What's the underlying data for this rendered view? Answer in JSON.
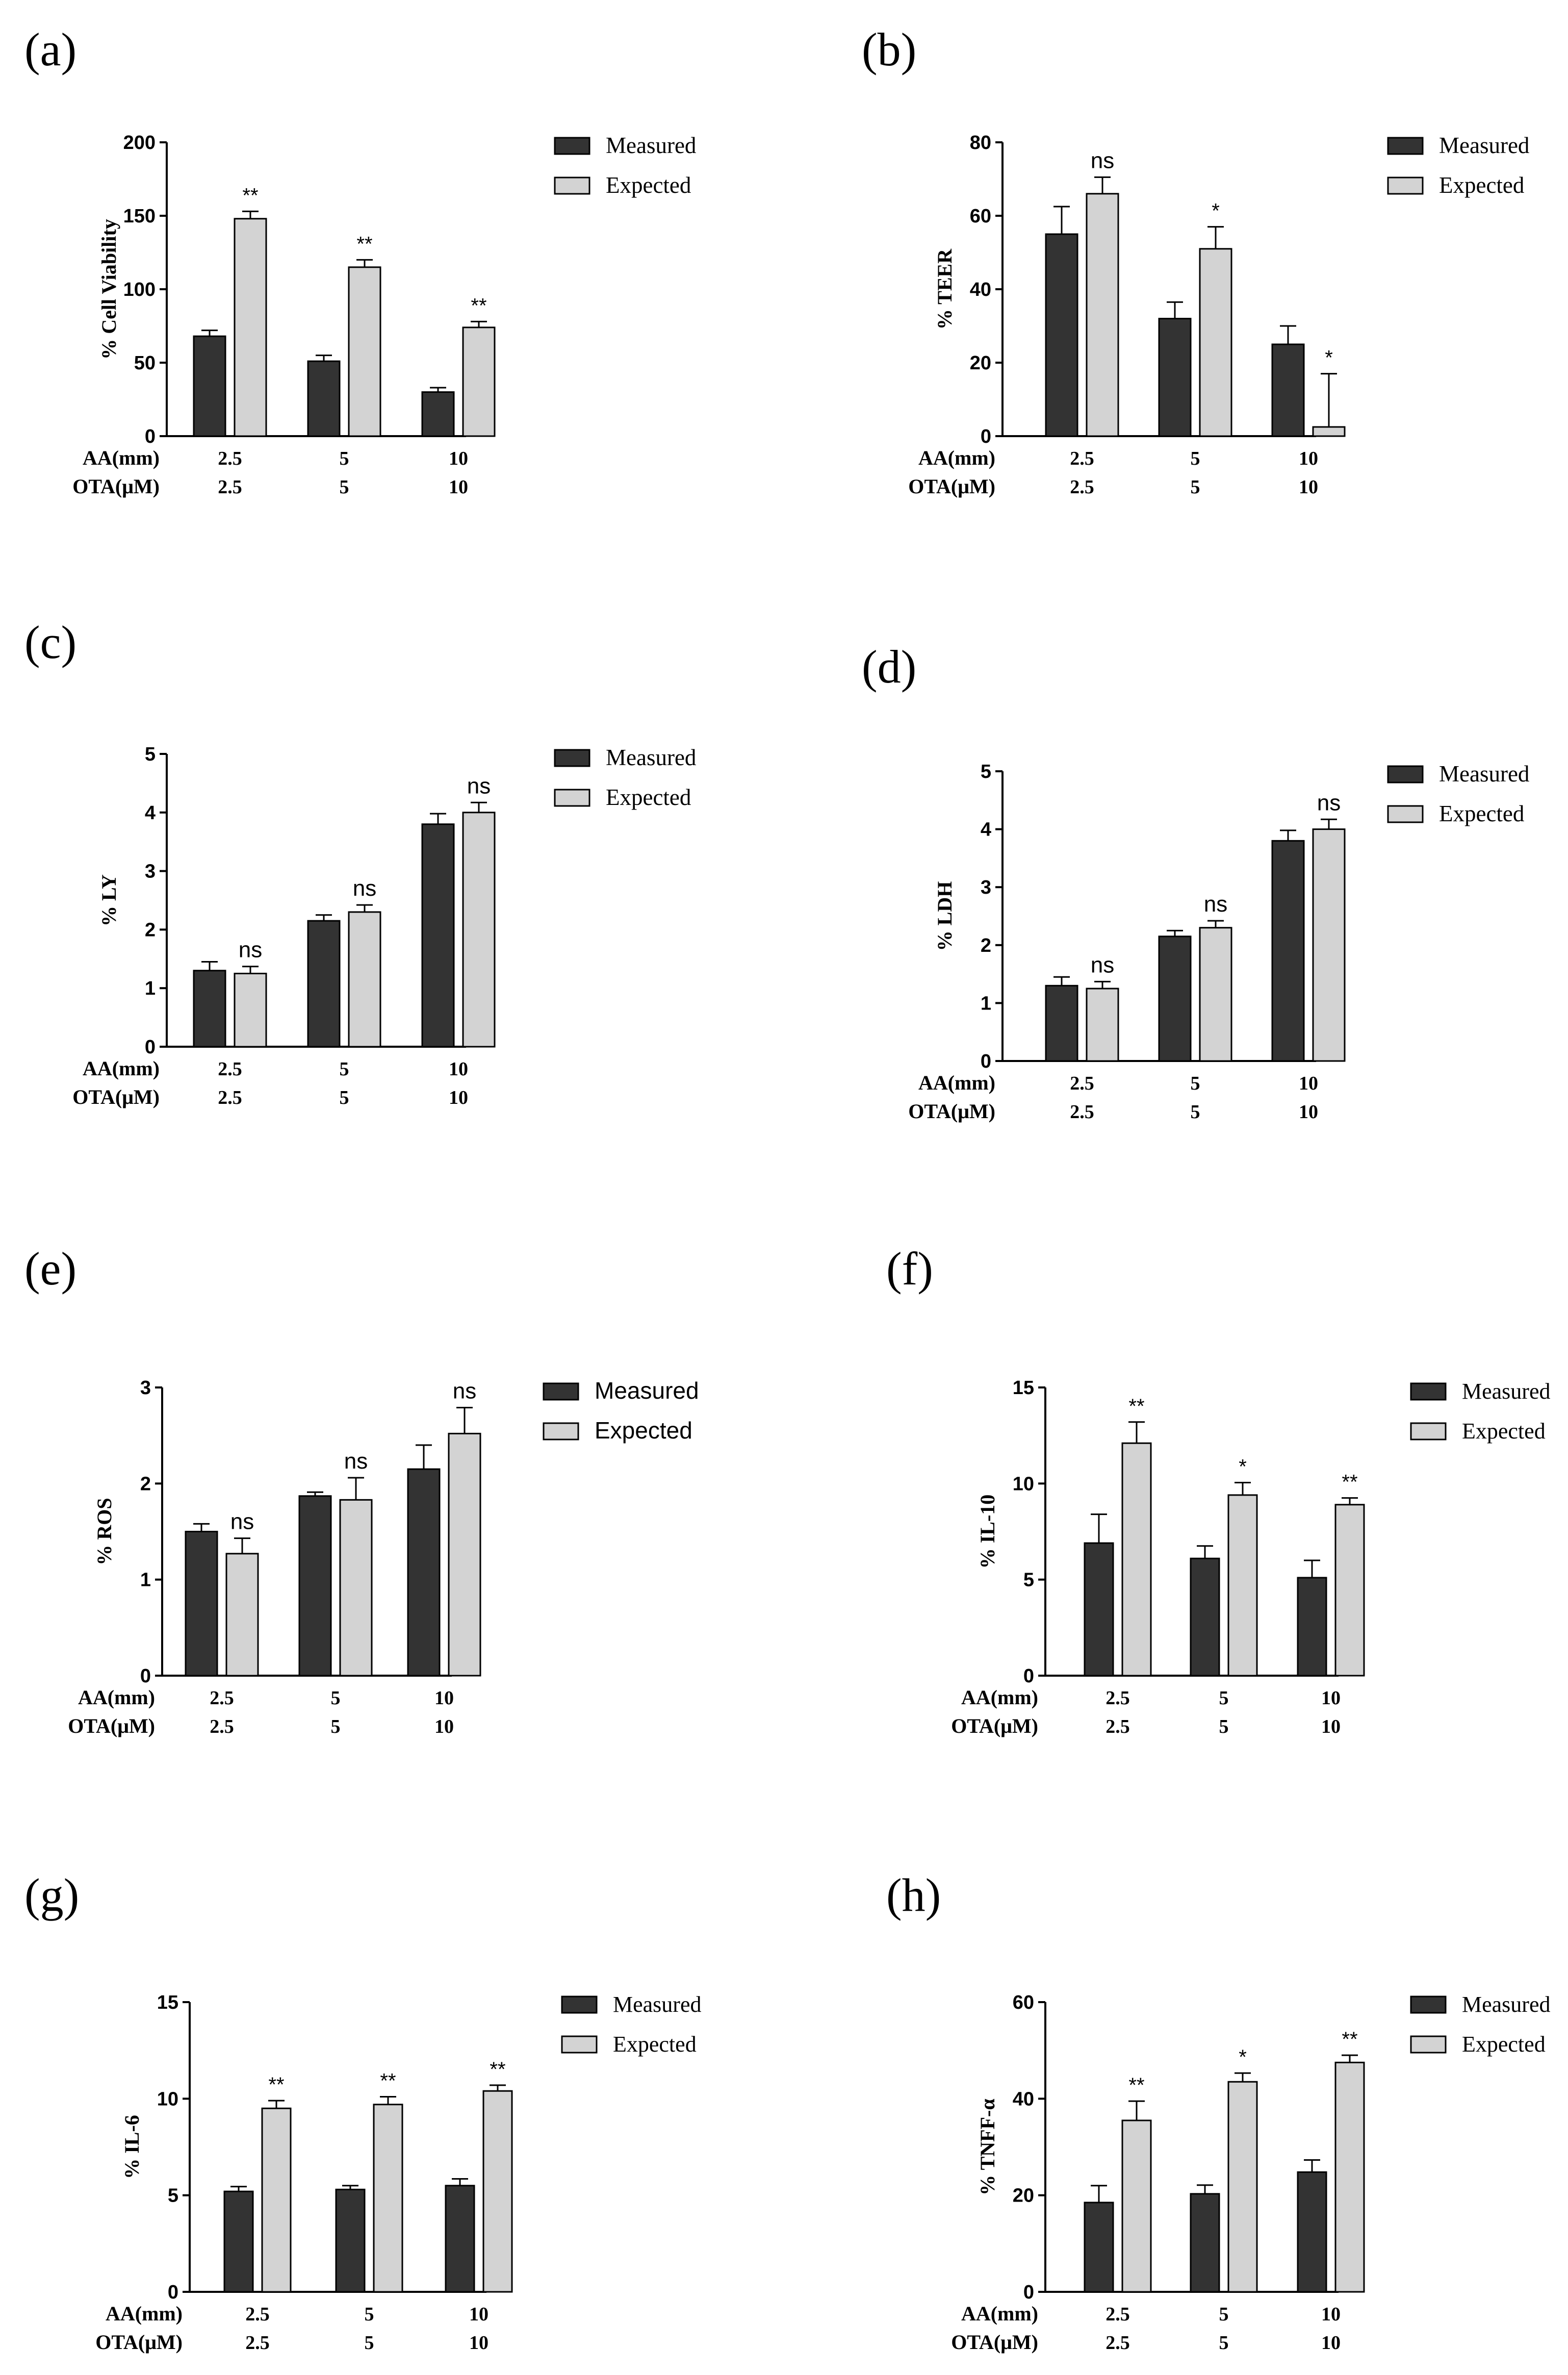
{
  "figure": {
    "measured_color": "#333333",
    "expected_color": "#d3d3d3",
    "axis_color": "#000000"
  },
  "chart_data": [
    {
      "type": "bar",
      "panel_label": "(a)",
      "ylabel": "% Cell Viability",
      "ylim": [
        0,
        200
      ],
      "yticks": [
        "0",
        "50",
        "100",
        "150",
        "200"
      ],
      "row_labels": [
        "AA(mm)",
        "OTA(μM)"
      ],
      "categories": [
        [
          "2.5",
          "2.5"
        ],
        [
          "5",
          "5"
        ],
        [
          "10",
          "10"
        ]
      ],
      "legend": [
        "Measured",
        "Expected"
      ],
      "series": [
        {
          "name": "Measured",
          "values": [
            68,
            51,
            30
          ],
          "errors": [
            4,
            4,
            3
          ]
        },
        {
          "name": "Expected",
          "values": [
            148,
            115,
            74
          ],
          "errors": [
            5,
            5,
            4
          ]
        }
      ],
      "annotations": [
        "**",
        "**",
        "**"
      ]
    },
    {
      "type": "bar",
      "panel_label": "(b)",
      "ylabel": "% TEER",
      "ylim": [
        0,
        80
      ],
      "yticks": [
        "0",
        "20",
        "40",
        "60",
        "80"
      ],
      "row_labels": [
        "AA(mm)",
        "OTA(μM)"
      ],
      "categories": [
        [
          "2.5",
          "2.5"
        ],
        [
          "5",
          "5"
        ],
        [
          "10",
          "10"
        ]
      ],
      "legend": [
        "Measured",
        "Expected"
      ],
      "series": [
        {
          "name": "Measured",
          "values": [
            55,
            32,
            25
          ],
          "errors": [
            7.5,
            4.5,
            5
          ]
        },
        {
          "name": "Expected",
          "values": [
            66,
            51,
            2.5
          ],
          "errors": [
            4.5,
            6,
            14.5
          ]
        }
      ],
      "annotations": [
        "ns",
        "*",
        "*"
      ]
    },
    {
      "type": "bar",
      "panel_label": "(c)",
      "ylabel": "% LY",
      "ylim": [
        0,
        5
      ],
      "yticks": [
        "0",
        "1",
        "2",
        "3",
        "4",
        "5"
      ],
      "row_labels": [
        "AA(mm)",
        "OTA(μM)"
      ],
      "categories": [
        [
          "2.5",
          "2.5"
        ],
        [
          "5",
          "5"
        ],
        [
          "10",
          "10"
        ]
      ],
      "legend": [
        "Measured",
        "Expected"
      ],
      "series": [
        {
          "name": "Measured",
          "values": [
            1.3,
            2.15,
            3.8
          ],
          "errors": [
            0.15,
            0.1,
            0.18
          ]
        },
        {
          "name": "Expected",
          "values": [
            1.25,
            2.3,
            4.0
          ],
          "errors": [
            0.12,
            0.12,
            0.17
          ]
        }
      ],
      "annotations": [
        "ns",
        "ns",
        "ns"
      ]
    },
    {
      "type": "bar",
      "panel_label": "(d)",
      "ylabel": "% LDH",
      "ylim": [
        0,
        5
      ],
      "yticks": [
        "0",
        "1",
        "2",
        "3",
        "4",
        "5"
      ],
      "row_labels": [
        "AA(mm)",
        "OTA(μM)"
      ],
      "categories": [
        [
          "2.5",
          "2.5"
        ],
        [
          "5",
          "5"
        ],
        [
          "10",
          "10"
        ]
      ],
      "legend": [
        "Measured",
        "Expected"
      ],
      "series": [
        {
          "name": "Measured",
          "values": [
            1.3,
            2.15,
            3.8
          ],
          "errors": [
            0.15,
            0.1,
            0.18
          ]
        },
        {
          "name": "Expected",
          "values": [
            1.25,
            2.3,
            4.0
          ],
          "errors": [
            0.12,
            0.12,
            0.17
          ]
        }
      ],
      "annotations": [
        "ns",
        "ns",
        "ns"
      ]
    },
    {
      "type": "bar",
      "panel_label": "(e)",
      "ylabel": "% ROS",
      "ylim": [
        0,
        3
      ],
      "yticks": [
        "0",
        "1",
        "2",
        "3"
      ],
      "row_labels": [
        "AA(mm)",
        "OTA(μM)"
      ],
      "categories": [
        [
          "2.5",
          "2.5"
        ],
        [
          "5",
          "5"
        ],
        [
          "10",
          "10"
        ]
      ],
      "legend": [
        "Measured",
        "Expected"
      ],
      "series": [
        {
          "name": "Measured",
          "values": [
            1.5,
            1.87,
            2.15
          ],
          "errors": [
            0.08,
            0.04,
            0.25
          ]
        },
        {
          "name": "Expected",
          "values": [
            1.27,
            1.83,
            2.52
          ],
          "errors": [
            0.16,
            0.23,
            0.27
          ]
        }
      ],
      "annotations": [
        "ns",
        "ns",
        "ns"
      ]
    },
    {
      "type": "bar",
      "panel_label": "(f)",
      "ylabel": "% IL-10",
      "ylim": [
        0,
        15
      ],
      "yticks": [
        "0",
        "5",
        "10",
        "15"
      ],
      "row_labels": [
        "AA(mm)",
        "OTA(μM)"
      ],
      "categories": [
        [
          "2.5",
          "2.5"
        ],
        [
          "5",
          "5"
        ],
        [
          "10",
          "10"
        ]
      ],
      "legend": [
        "Measured",
        "Expected"
      ],
      "series": [
        {
          "name": "Measured",
          "values": [
            6.9,
            6.1,
            5.1
          ],
          "errors": [
            1.5,
            0.65,
            0.9
          ]
        },
        {
          "name": "Expected",
          "values": [
            12.1,
            9.4,
            8.9
          ],
          "errors": [
            1.1,
            0.65,
            0.35
          ]
        }
      ],
      "annotations": [
        "**",
        "*",
        "**"
      ]
    },
    {
      "type": "bar",
      "panel_label": "(g)",
      "ylabel": "% IL-6",
      "ylim": [
        0,
        15
      ],
      "yticks": [
        "0",
        "5",
        "10",
        "15"
      ],
      "row_labels": [
        "AA(mm)",
        "OTA(μM)"
      ],
      "categories": [
        [
          "2.5",
          "2.5"
        ],
        [
          "5",
          "5"
        ],
        [
          "10",
          "10"
        ]
      ],
      "legend": [
        "Measured",
        "Expected"
      ],
      "series": [
        {
          "name": "Measured",
          "values": [
            5.2,
            5.3,
            5.5
          ],
          "errors": [
            0.25,
            0.2,
            0.35
          ]
        },
        {
          "name": "Expected",
          "values": [
            9.5,
            9.7,
            10.4
          ],
          "errors": [
            0.4,
            0.4,
            0.3
          ]
        }
      ],
      "annotations": [
        "**",
        "**",
        "**"
      ]
    },
    {
      "type": "bar",
      "panel_label": "(h)",
      "ylabel": "% TNFF-α",
      "ylim": [
        0,
        60
      ],
      "yticks": [
        "0",
        "20",
        "40",
        "60"
      ],
      "row_labels": [
        "AA(mm)",
        "OTA(μM)"
      ],
      "categories": [
        [
          "2.5",
          "2.5"
        ],
        [
          "5",
          "5"
        ],
        [
          "10",
          "10"
        ]
      ],
      "legend": [
        "Measured",
        "Expected"
      ],
      "series": [
        {
          "name": "Measured",
          "values": [
            18.5,
            20.3,
            24.8
          ],
          "errors": [
            3.5,
            1.8,
            2.5
          ]
        },
        {
          "name": "Expected",
          "values": [
            35.5,
            43.5,
            47.5
          ],
          "errors": [
            4,
            1.8,
            1.5
          ]
        }
      ],
      "annotations": [
        "**",
        "*",
        "**"
      ]
    }
  ]
}
